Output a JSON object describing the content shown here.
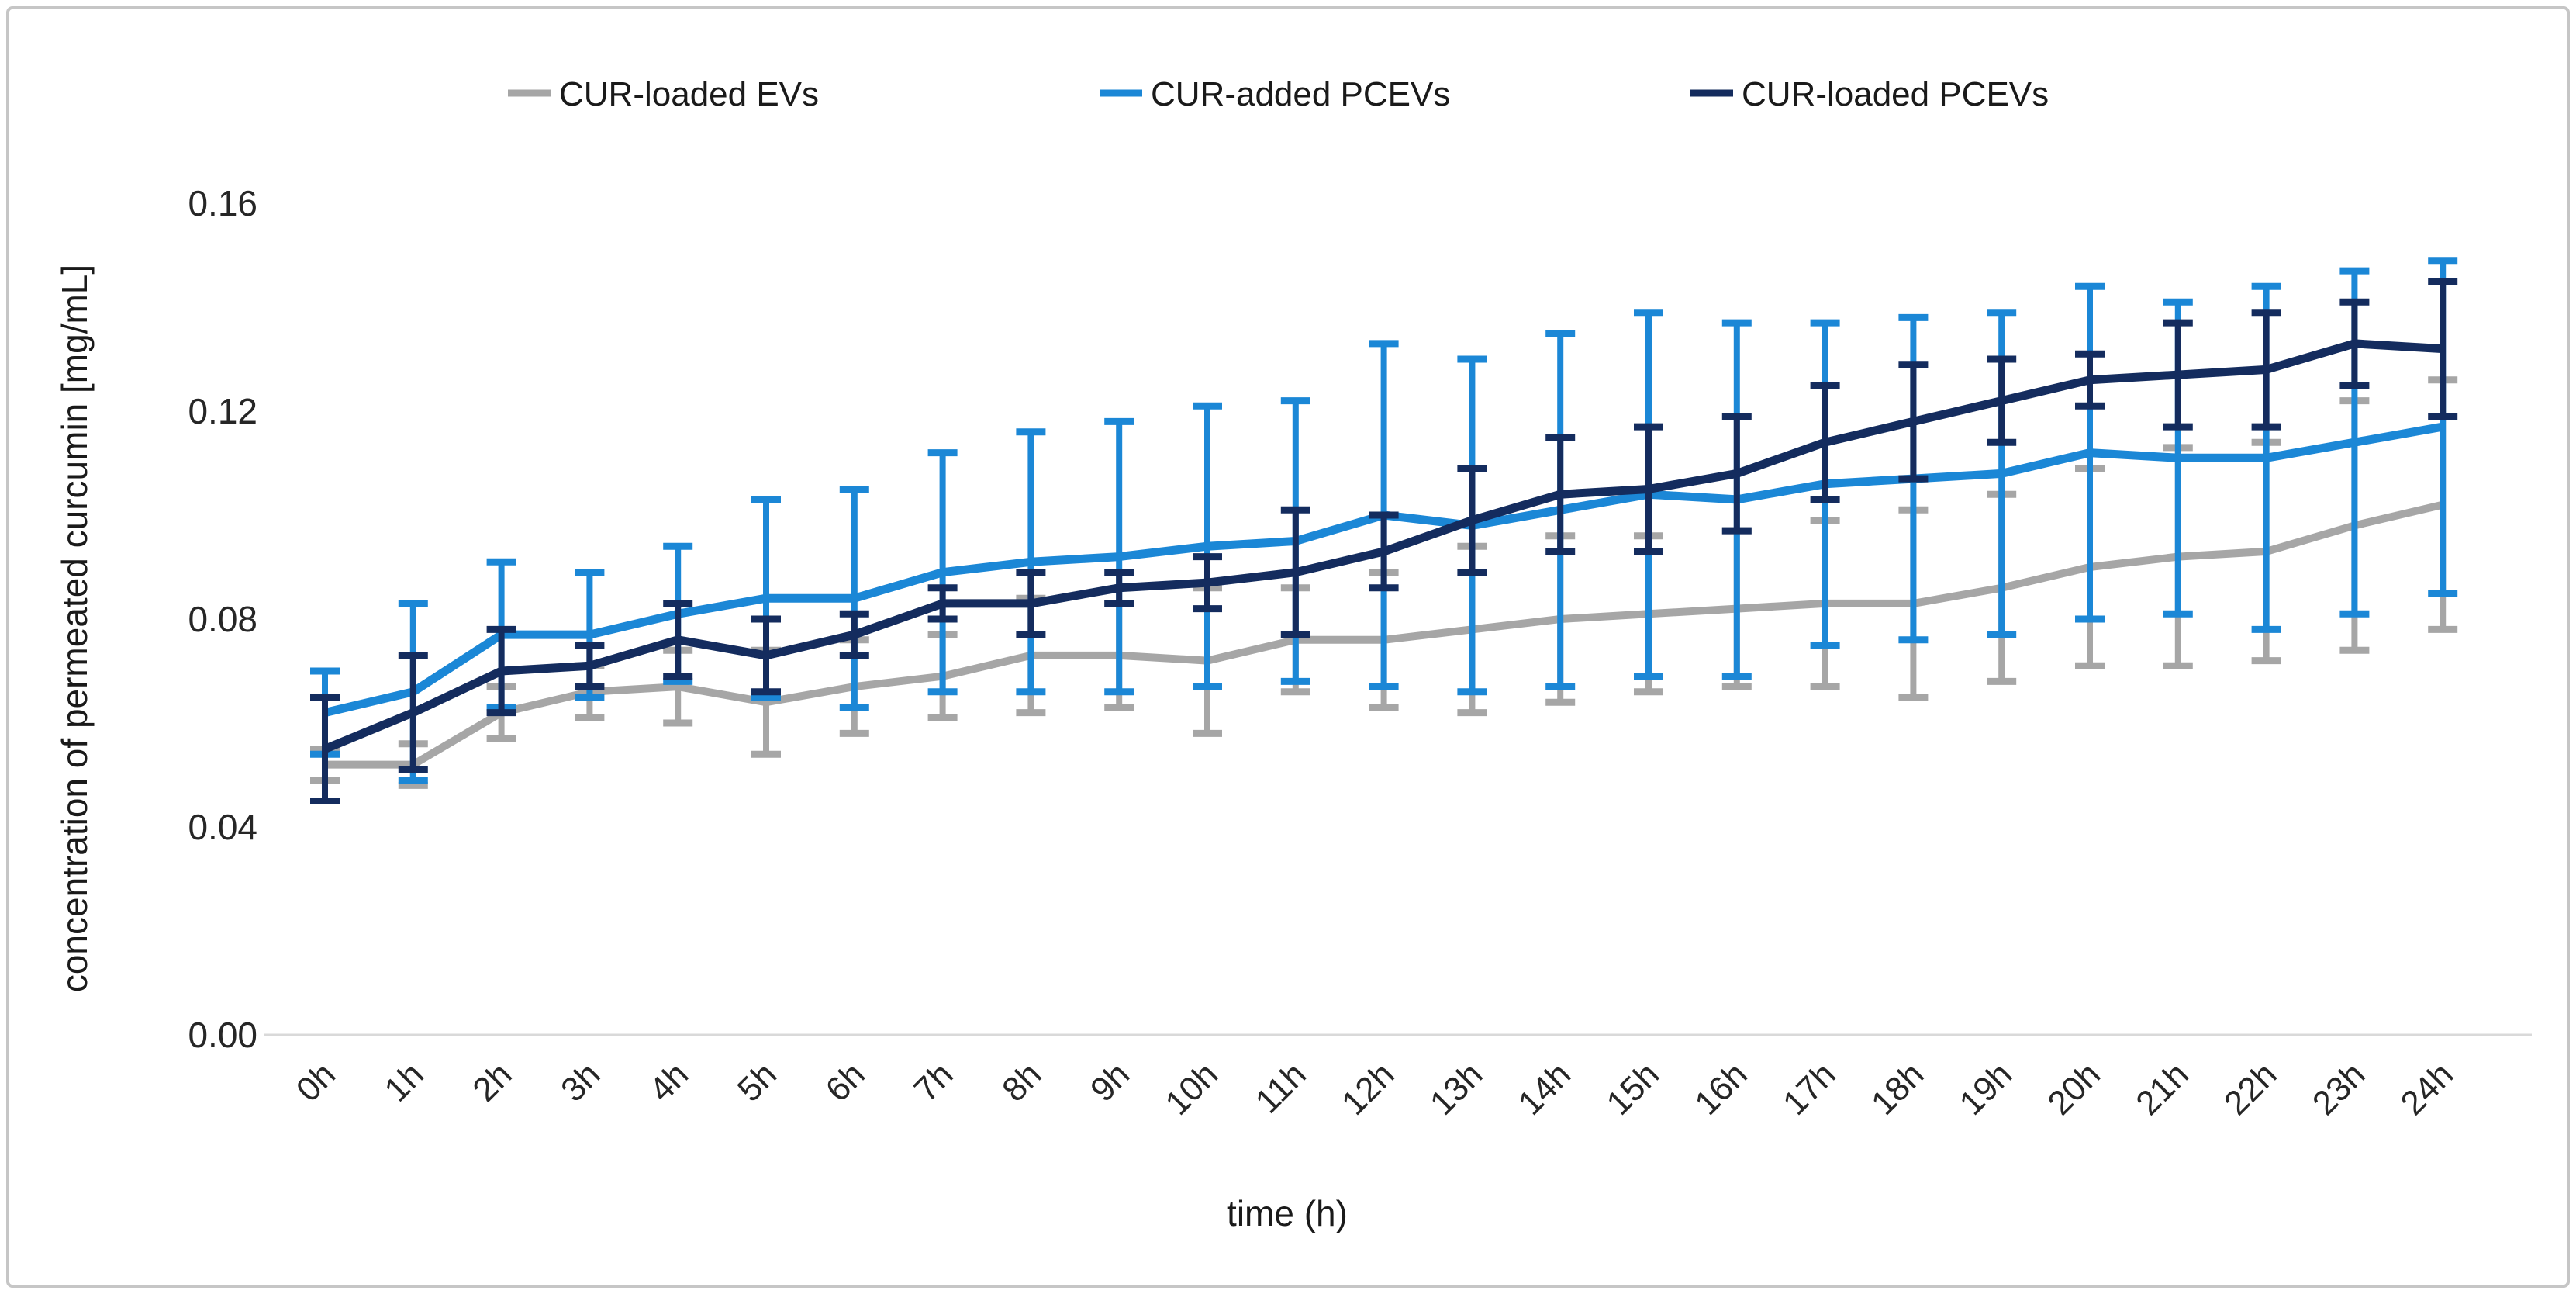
{
  "figure": {
    "background": "#ffffff",
    "border_color": "#c6c6c6",
    "axis_line_color": "#d9d9d9",
    "tick_text_color": "#262626"
  },
  "legend": {
    "items": [
      {
        "label": "CUR-loaded EVs",
        "color": "#a6a6a6"
      },
      {
        "label": "CUR-added PCEVs",
        "color": "#1b87d6"
      },
      {
        "label": "CUR-loaded PCEVs",
        "color": "#142c5e"
      }
    ]
  },
  "chart_data": {
    "type": "line",
    "title": "",
    "xlabel": "time (h)",
    "ylabel": "concentration of permeated curcumin [mg/mL]",
    "ylim": [
      0.0,
      0.16
    ],
    "grid": false,
    "legend_position": "top",
    "y_ticks": [
      {
        "value": 0.0,
        "label": "0.00"
      },
      {
        "value": 0.04,
        "label": "0.04"
      },
      {
        "value": 0.08,
        "label": "0.08"
      },
      {
        "value": 0.12,
        "label": "0.12"
      },
      {
        "value": 0.16,
        "label": "0.16"
      }
    ],
    "categories": [
      "0h",
      "1h",
      "2h",
      "3h",
      "4h",
      "5h",
      "6h",
      "7h",
      "8h",
      "9h",
      "10h",
      "11h",
      "12h",
      "13h",
      "14h",
      "15h",
      "16h",
      "17h",
      "18h",
      "19h",
      "20h",
      "21h",
      "22h",
      "23h",
      "24h"
    ],
    "series": [
      {
        "name": "CUR-loaded EVs",
        "color": "#a6a6a6",
        "line_width": 10,
        "values": [
          0.052,
          0.052,
          0.062,
          0.066,
          0.067,
          0.064,
          0.067,
          0.069,
          0.073,
          0.073,
          0.072,
          0.076,
          0.076,
          0.078,
          0.08,
          0.081,
          0.082,
          0.083,
          0.083,
          0.086,
          0.09,
          0.092,
          0.093,
          0.098,
          0.102
        ],
        "errors": [
          0.003,
          0.004,
          0.005,
          0.005,
          0.007,
          0.01,
          0.009,
          0.008,
          0.011,
          0.01,
          0.014,
          0.01,
          0.013,
          0.016,
          0.016,
          0.015,
          0.015,
          0.016,
          0.018,
          0.018,
          0.019,
          0.021,
          0.021,
          0.024,
          0.024
        ]
      },
      {
        "name": "CUR-added PCEVs",
        "color": "#1b87d6",
        "line_width": 11,
        "values": [
          0.062,
          0.066,
          0.077,
          0.077,
          0.081,
          0.084,
          0.084,
          0.089,
          0.091,
          0.092,
          0.094,
          0.095,
          0.1,
          0.098,
          0.101,
          0.104,
          0.103,
          0.106,
          0.107,
          0.108,
          0.112,
          0.111,
          0.111,
          0.114,
          0.117
        ],
        "errors": [
          0.008,
          0.017,
          0.014,
          0.012,
          0.013,
          0.019,
          0.021,
          0.023,
          0.025,
          0.026,
          0.027,
          0.027,
          0.033,
          0.032,
          0.034,
          0.035,
          0.034,
          0.031,
          0.031,
          0.031,
          0.032,
          0.03,
          0.033,
          0.033,
          0.032
        ]
      },
      {
        "name": "CUR-loaded PCEVs",
        "color": "#142c5e",
        "line_width": 11,
        "values": [
          0.055,
          0.062,
          0.07,
          0.071,
          0.076,
          0.073,
          0.077,
          0.083,
          0.083,
          0.086,
          0.087,
          0.089,
          0.093,
          0.099,
          0.104,
          0.105,
          0.108,
          0.114,
          0.118,
          0.122,
          0.126,
          0.127,
          0.128,
          0.133,
          0.132
        ],
        "errors": [
          0.01,
          0.011,
          0.008,
          0.004,
          0.007,
          0.007,
          0.004,
          0.003,
          0.006,
          0.003,
          0.005,
          0.012,
          0.007,
          0.01,
          0.011,
          0.012,
          0.011,
          0.011,
          0.011,
          0.008,
          0.005,
          0.01,
          0.011,
          0.008,
          0.013
        ]
      }
    ]
  }
}
